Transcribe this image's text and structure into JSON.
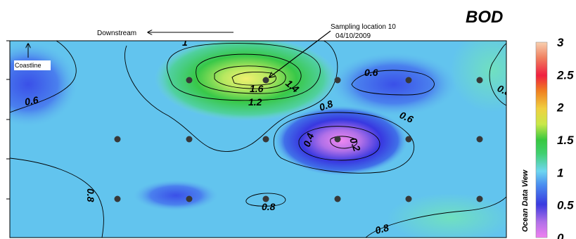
{
  "chart_data": {
    "type": "heatmap",
    "title": "BOD",
    "colorbar": {
      "range": [
        0,
        3
      ],
      "ticks": [
        "0",
        "0.5",
        "1",
        "1.5",
        "2",
        "2.5",
        "3"
      ]
    },
    "annotations": {
      "downstream": "Downstream",
      "coastline": "Coastline",
      "sampling_title": "Sampling location 10",
      "sampling_date": "04/10/2009"
    },
    "watermark": "Ocean Data View",
    "contour_labels": [
      "1",
      "1.4",
      "1.6",
      "1.2",
      "0.6",
      "0.6",
      "0.8",
      "0.8",
      "0.6",
      "0.4",
      "0.2",
      "0.8",
      "0.8",
      "0.8"
    ],
    "sampling_points": [
      {
        "col": 2,
        "row": 1
      },
      {
        "col": 3,
        "row": 1
      },
      {
        "col": 4,
        "row": 1
      },
      {
        "col": 5,
        "row": 1
      },
      {
        "col": 6,
        "row": 1
      },
      {
        "col": 1,
        "row": 2
      },
      {
        "col": 2,
        "row": 2
      },
      {
        "col": 3,
        "row": 2
      },
      {
        "col": 4,
        "row": 2
      },
      {
        "col": 5,
        "row": 2
      },
      {
        "col": 6,
        "row": 2
      },
      {
        "col": 1,
        "row": 3
      },
      {
        "col": 2,
        "row": 3
      },
      {
        "col": 3,
        "row": 3
      },
      {
        "col": 4,
        "row": 3
      },
      {
        "col": 5,
        "row": 3
      },
      {
        "col": 6,
        "row": 3
      }
    ]
  }
}
